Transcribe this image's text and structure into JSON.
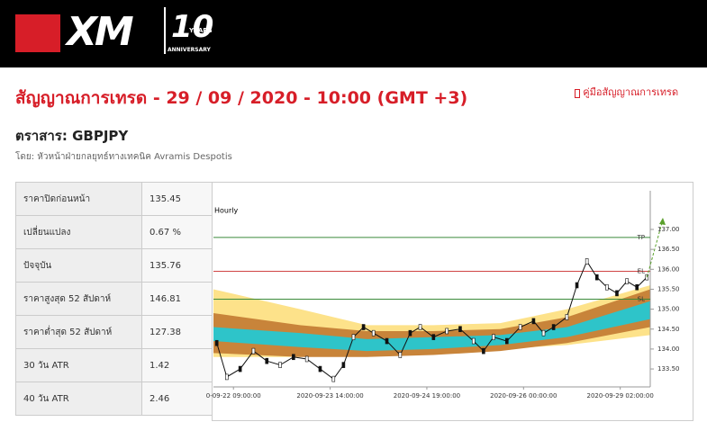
{
  "header": {
    "logo": "XM",
    "anniversary_number": "10",
    "anniversary_years": "YEARS",
    "anniversary_text": "ANNIVERSARY"
  },
  "page": {
    "title": "สัญญาณการเทรด - 29 / 09 / 2020 - 10:00 (GMT +3)",
    "guide_link": "คู่มือสัญญาณการเทรด",
    "instrument": "ตราสาร: GBPJPY",
    "author": "โดย: หัวหน้าฝ่ายกลยุทธ์ทางเทคนิค Avramis Despotis"
  },
  "table": {
    "rows": [
      [
        "ราคาปิดก่อนหน้า",
        "135.45"
      ],
      [
        "เปลี่ยนแปลง",
        "0.67 %"
      ],
      [
        "ปัจจุบัน",
        "135.76"
      ],
      [
        "ราคาสูงสุด 52 สัปดาห์",
        "146.81"
      ],
      [
        "ราคาต่ำสุด 52 สัปดาห์",
        "127.38"
      ],
      [
        "30 วัน ATR",
        "1.42"
      ],
      [
        "40 วัน ATR",
        "2.46"
      ]
    ]
  },
  "chart_data": {
    "type": "line",
    "subtitle": "Hourly",
    "color": "#111111",
    "x": [
      -5,
      -2,
      2,
      6,
      10,
      14,
      18,
      22,
      26,
      30,
      33,
      36,
      39,
      42,
      46,
      50,
      53,
      56,
      60,
      64,
      68,
      72,
      75,
      78,
      82,
      86,
      90,
      93,
      96,
      100,
      103,
      106,
      109,
      112,
      115,
      118,
      121,
      124
    ],
    "values": [
      134.15,
      133.3,
      133.5,
      133.95,
      133.7,
      133.6,
      133.8,
      133.75,
      133.5,
      133.25,
      133.6,
      134.3,
      134.55,
      134.4,
      134.2,
      133.85,
      134.4,
      134.55,
      134.3,
      134.45,
      134.5,
      134.2,
      133.95,
      134.3,
      134.2,
      134.55,
      134.7,
      134.4,
      134.55,
      134.8,
      135.6,
      136.2,
      135.8,
      135.55,
      135.4,
      135.7,
      135.55,
      135.8
    ],
    "band_x": [
      -6,
      20,
      40,
      60,
      80,
      100,
      125
    ],
    "bands": [
      {
        "color": "#fde28a",
        "upper": [
          135.5,
          135.0,
          134.6,
          134.6,
          134.65,
          135.0,
          135.6
        ],
        "lower": [
          133.8,
          133.8,
          133.95,
          134.0,
          134.0,
          134.1,
          134.35
        ]
      },
      {
        "color": "#c8843a",
        "upper": [
          134.9,
          134.6,
          134.45,
          134.45,
          134.5,
          134.8,
          135.5
        ],
        "lower": [
          133.9,
          133.8,
          133.8,
          133.85,
          133.95,
          134.15,
          134.55
        ]
      },
      {
        "color": "#2ec4c9",
        "upper": [
          134.55,
          134.4,
          134.25,
          134.3,
          134.35,
          134.55,
          135.2
        ],
        "lower": [
          134.2,
          134.05,
          133.95,
          134.0,
          134.1,
          134.3,
          134.75
        ]
      }
    ],
    "levels": [
      {
        "label": "TP",
        "value": 136.8,
        "color": "#3a8a3a"
      },
      {
        "label": "EL",
        "value": 135.95,
        "color": "#d04545"
      },
      {
        "label": "SL",
        "value": 135.25,
        "color": "#3a8a3a"
      }
    ],
    "xlim": [
      -6,
      125
    ],
    "xticks": [
      {
        "value": 0,
        "label": "0-09-22 09:00:00"
      },
      {
        "value": 29,
        "label": "2020-09-23 14:00:00"
      },
      {
        "value": 58,
        "label": "2020-09-24 19:00:00"
      },
      {
        "value": 87,
        "label": "2020-09-26 00:00:00"
      },
      {
        "value": 116,
        "label": "2020-09-29 02:00:00"
      }
    ],
    "ylim": [
      133.05,
      137.97
    ],
    "yticks": [
      {
        "value": 133.5,
        "label": "133.50"
      },
      {
        "value": 134,
        "label": "134.00"
      },
      {
        "value": 134.5,
        "label": "134.50"
      },
      {
        "value": 135,
        "label": "135.00"
      },
      {
        "value": 135.5,
        "label": "135.50"
      },
      {
        "value": 136,
        "label": "136.00"
      },
      {
        "value": 136.5,
        "label": "136.50"
      },
      {
        "value": 137,
        "label": "137.00"
      }
    ]
  }
}
